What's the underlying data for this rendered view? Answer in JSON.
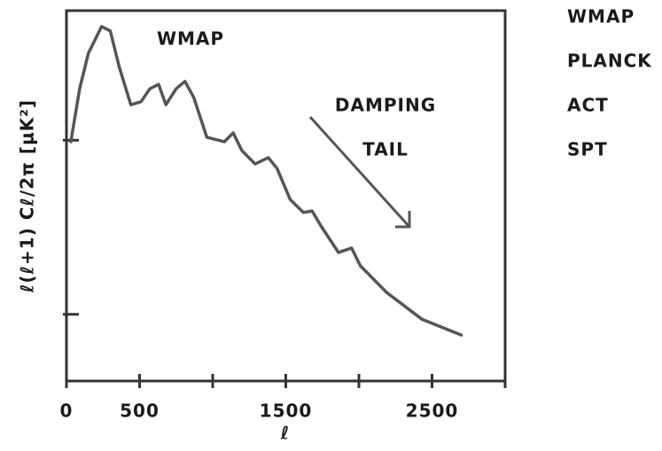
{
  "chart_data": {
    "type": "line",
    "y_label": "ℓ(ℓ+1) Cℓ/2π [μK²]",
    "x_label": "ℓ",
    "annotations": [
      "WMAP",
      "DAMPING",
      "TAIL"
    ],
    "side_labels": [
      "WMAP",
      "PLANCK",
      "ACT",
      "SPT"
    ],
    "color": "#555555",
    "x": [
      30,
      90,
      150,
      240,
      300,
      360,
      440,
      510,
      570,
      630,
      680,
      750,
      810,
      870,
      960,
      1080,
      1140,
      1200,
      1290,
      1380,
      1440,
      1530,
      1620,
      1680,
      1740,
      1860,
      1950,
      2010,
      2190,
      2430,
      2700
    ],
    "values": [
      64.6,
      78.9,
      88.5,
      95.7,
      94.5,
      84.9,
      74.6,
      75.4,
      78.9,
      80.1,
      74.6,
      78.9,
      80.9,
      76.6,
      65.8,
      64.6,
      67,
      62.2,
      58.6,
      60.3,
      57.4,
      49,
      45.5,
      45.9,
      41.9,
      34.7,
      35.9,
      31.1,
      23.9,
      16.7,
      12.4
    ],
    "xlim": [
      0,
      3000
    ],
    "xticks": [
      0,
      500,
      1500,
      2500
    ],
    "minor_xticks": [
      1000,
      2000,
      3000
    ],
    "ylim": [
      0,
      100
    ],
    "minor_yticks": [
      18,
      65
    ]
  }
}
